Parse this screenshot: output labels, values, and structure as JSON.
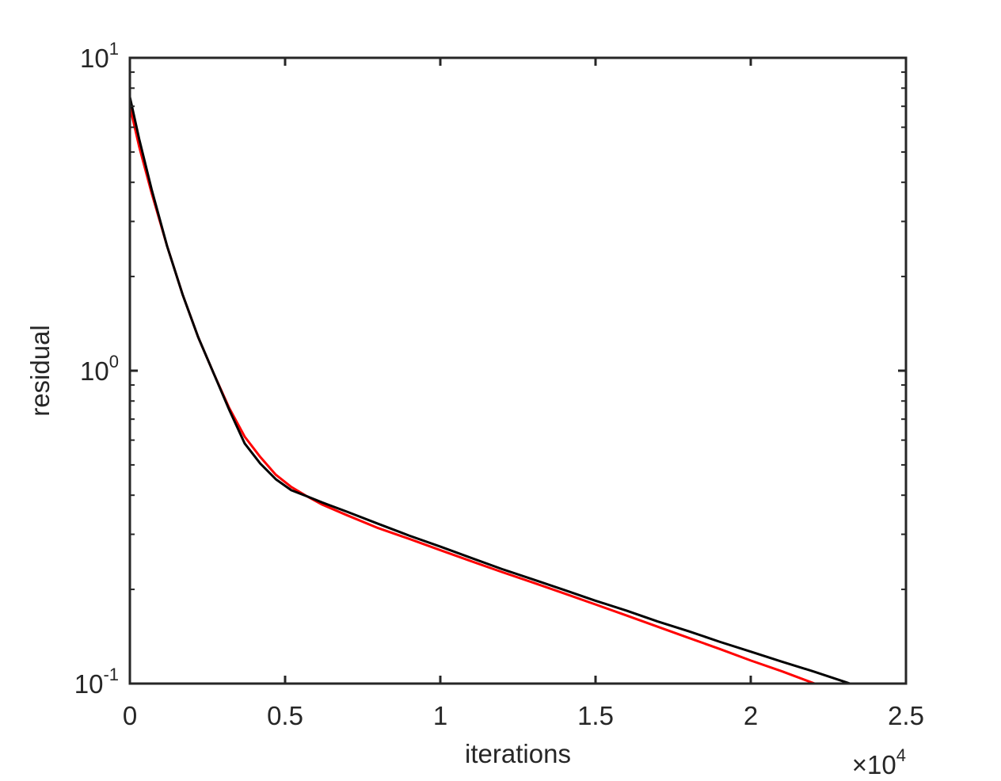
{
  "chart_data": {
    "type": "line",
    "xlabel": "iterations",
    "ylabel": "residual",
    "xscale": "linear",
    "yscale": "log",
    "xlim": [
      0,
      25000
    ],
    "ylim": [
      0.1,
      10
    ],
    "x_ticks": [
      {
        "value": 0,
        "label": "0"
      },
      {
        "value": 5000,
        "label": "0.5"
      },
      {
        "value": 10000,
        "label": "1"
      },
      {
        "value": 15000,
        "label": "1.5"
      },
      {
        "value": 20000,
        "label": "2"
      },
      {
        "value": 25000,
        "label": "2.5"
      }
    ],
    "x_multiplier": {
      "base": "×10",
      "exponent": "4"
    },
    "y_ticks": [
      {
        "value": 0.1,
        "base": "10",
        "exponent": "-1"
      },
      {
        "value": 1,
        "base": "10",
        "exponent": "0"
      },
      {
        "value": 10,
        "base": "10",
        "exponent": "1"
      }
    ],
    "grid": false,
    "box": true,
    "series": [
      {
        "color": "#ff0000",
        "x": [
          0,
          300,
          700,
          1200,
          1700,
          2200,
          2700,
          3200,
          3700,
          4200,
          4700,
          5200,
          5700,
          6200,
          7000,
          8000,
          9000,
          10000,
          11000,
          12000,
          13000,
          14000,
          15000,
          16000,
          17000,
          18000,
          19000,
          20000,
          21000,
          22000,
          23000
        ],
        "y": [
          7.0,
          5.2,
          3.7,
          2.5,
          1.75,
          1.28,
          0.98,
          0.76,
          0.615,
          0.53,
          0.465,
          0.425,
          0.397,
          0.373,
          0.345,
          0.314,
          0.29,
          0.267,
          0.246,
          0.227,
          0.21,
          0.194,
          0.179,
          0.165,
          0.152,
          0.14,
          0.129,
          0.1185,
          0.1095,
          0.1005,
          0.0925
        ]
      },
      {
        "color": "#000000",
        "x": [
          0,
          300,
          700,
          1200,
          1700,
          2200,
          2700,
          3200,
          3700,
          4200,
          4700,
          5200,
          5700,
          6200,
          7000,
          8000,
          9000,
          10000,
          11000,
          12000,
          13000,
          14000,
          15000,
          16000,
          17000,
          18000,
          19000,
          20000,
          21000,
          22000,
          23000,
          24000
        ],
        "y": [
          7.5,
          5.5,
          3.8,
          2.5,
          1.75,
          1.28,
          0.98,
          0.75,
          0.585,
          0.505,
          0.45,
          0.415,
          0.397,
          0.379,
          0.354,
          0.324,
          0.297,
          0.274,
          0.252,
          0.232,
          0.215,
          0.199,
          0.184,
          0.171,
          0.158,
          0.147,
          0.136,
          0.1265,
          0.1175,
          0.1095,
          0.1015,
          0.094
        ]
      }
    ]
  }
}
